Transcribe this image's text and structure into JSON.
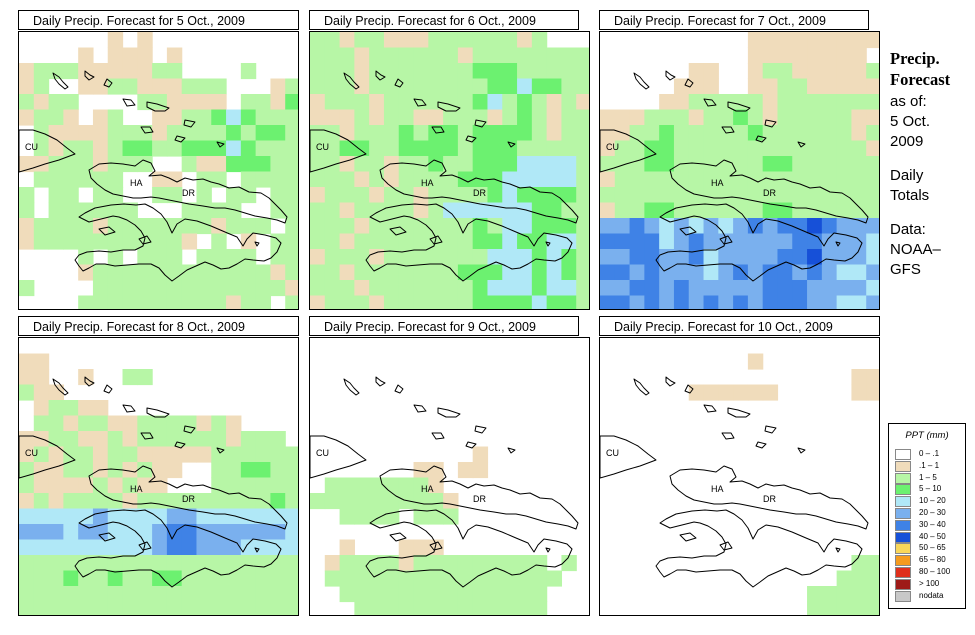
{
  "side_panel": {
    "heading_line1": "Precip.",
    "heading_line2": "Forecast",
    "asof_line1": "as of:",
    "asof_line2": "5 Oct.",
    "asof_line3": "2009",
    "totals_line1": "Daily",
    "totals_line2": "Totals",
    "data_line1": "Data:",
    "data_line2": "NOAA–",
    "data_line3": "GFS"
  },
  "map_labels": {
    "cuba": "CU",
    "haiti": "HA",
    "dominican_republic": "DR"
  },
  "legend": {
    "title": "PPT (mm)",
    "classes": [
      {
        "label": "0 – .1",
        "color": "#ffffff",
        "icon": "swatch-0"
      },
      {
        "label": ".1 – 1",
        "color": "#f0dcbb",
        "icon": "swatch-1"
      },
      {
        "label": "1 – 5",
        "color": "#b7f6a6",
        "icon": "swatch-2"
      },
      {
        "label": "5 – 10",
        "color": "#6cf170",
        "icon": "swatch-3"
      },
      {
        "label": "10 – 20",
        "color": "#b0e8f7",
        "icon": "swatch-4"
      },
      {
        "label": "20 – 30",
        "color": "#7ab0ee",
        "icon": "swatch-5"
      },
      {
        "label": "30 – 40",
        "color": "#3f82e6",
        "icon": "swatch-6"
      },
      {
        "label": "40 – 50",
        "color": "#1650d8",
        "icon": "swatch-7"
      },
      {
        "label": "50 – 65",
        "color": "#f9d75a",
        "icon": "swatch-8"
      },
      {
        "label": "65 – 80",
        "color": "#f59b1e",
        "icon": "swatch-9"
      },
      {
        "label": "80 – 100",
        "color": "#e0301c",
        "icon": "swatch-10"
      },
      {
        "label": "> 100",
        "color": "#9e1a18",
        "icon": "swatch-11"
      },
      {
        "label": "nodata",
        "color": "#c8c8c8",
        "icon": "swatch-12"
      }
    ]
  },
  "panels": [
    {
      "title": "Daily Precip. Forecast for  5 Oct., 2009",
      "grid": [
        "0000001010000000000",
        "0000101110100000000",
        "1222111112200002000",
        "1200112211122200012",
        "2122000022111102213",
        "1221012001122343222",
        "0211112221222232332",
        "0212212332233343222",
        "1122212220021133322",
        "0222222001102202222",
        "2022022002202022022",
        "2022222200022220022",
        "1222212222222122202",
        "1222222222210201022",
        "0000202022202222022",
        "0000122222222222212",
        "2000022222222222221",
        "0000222222222212202"
      ]
    },
    {
      "title": "Daily Precip. Forecast for  6 Oct., 2009",
      "grid": [
        "2212211122222212000",
        "2221222222122222222",
        "2221222222233322222",
        "2221222222223343322",
        "1222122222234232121",
        "1112122112221232122",
        "2212223233233332122",
        "2233223333233322222",
        "2212212232233344442",
        "2221212222333444442",
        "1222122122223433332",
        "2212222124444443322",
        "2221222222232443332",
        "2212222222233433442",
        "1222122222224443432",
        "2212222222333443432",
        "2221222222234443442",
        "1222122222233334332"
      ]
    },
    {
      "title": "Daily Precip. Forecast for  7 Oct., 2009",
      "grid": [
        "0000000000111111111",
        "0000000000111111110",
        "0000001100122111112",
        "0000011100112211111",
        "0000112222212222222",
        "1112221223212222211",
        "1122322222322222212",
        "1223322222222222221",
        "2223322222233222222",
        "1222222222222222222",
        "2222222222222222222",
        "1223322222233222222",
        "5565454545656676555",
        "6666456555555665554",
        "5566556455556675554",
        "6656555456566565445",
        "5566565555566655554",
        "6656565656566655445"
      ]
    },
    {
      "title": "Daily Precip. Forecast for  8 Oct., 2009",
      "grid": [
        "0000000000000000000",
        "1100000000000000000",
        "1100100220000000000",
        "2110000000000000000",
        "0122110000000000000",
        "0221221122221210000",
        "1122112122222212220",
        "1212212211111222222",
        "2112212121100223322",
        "2111121211000222222",
        "1212222122222222232",
        "4444454444554444444",
        "5554554445665555554",
        "4444444445665554444",
        "2222222222222222222",
        "2223223223322222222",
        "2222222222222222222",
        "2222222222222222222"
      ]
    },
    {
      "title": "Daily Precip. Forecast for  9 Oct., 2009",
      "grid": [
        "0000000000000000000",
        "0000000000000000000",
        "0000000000000000000",
        "0000000000000000000",
        "0000000000000000000",
        "0000000000000000000",
        "0000000000000000000",
        "0000000000010000000",
        "0000000110110000000",
        "0222222210000000000",
        "2222222221000000000",
        "0022220222000000000",
        "0000000000000000000",
        "0010001110000000000",
        "0122221222222222020",
        "0222222222222222200",
        "0022222222222222000",
        "0002222222222222000"
      ]
    },
    {
      "title": "Daily Precip. Forecast for  10 Oct., 2009",
      "grid": [
        "0000000000000000000",
        "0000000000100000000",
        "0000000000000000011",
        "0000001111110000011",
        "0000000000000000000",
        "0000000000000000000",
        "0000000000000000000",
        "0000000000000000000",
        "0000000000000000000",
        "0000000000000000000",
        "0000000000000000000",
        "0000000000000000000",
        "0000000000000000000",
        "0000000000000000000",
        "0000000000000000022",
        "0000000000000000222",
        "0000000000000022222",
        "0000000000000022222"
      ]
    }
  ]
}
